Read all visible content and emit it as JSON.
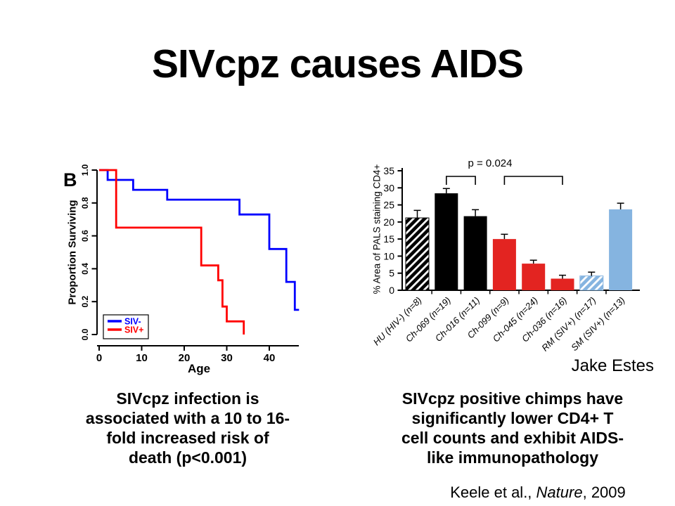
{
  "slide": {
    "title": "SIVcpz causes AIDS",
    "left_caption": "SIVcpz infection is\nassociated with a 10 to 16-\nfold increased risk of\ndeath (p<0.001)",
    "right_caption": "SIVcpz positive chimps have\nsignificantly lower CD4+ T\ncell counts and exhibit AIDS-\nlike immunopathology",
    "credit": "Jake Estes",
    "citation": {
      "prefix": "Keele et al., ",
      "journal": "Nature",
      "suffix": ", 2009"
    }
  },
  "colors": {
    "background": "#ffffff",
    "text": "#000000",
    "siv_negative_line": "#0000ff",
    "siv_positive_line": "#ff0000",
    "bar_black": "#000000",
    "bar_red": "#e32421",
    "bar_light_blue": "#85b4e0"
  },
  "chart_data": [
    {
      "type": "line",
      "subtype": "kaplan-meier-step",
      "panel_label": "B",
      "xlabel": "Age",
      "ylabel": "Proportion Surviving",
      "xlim": [
        0,
        47
      ],
      "ylim": [
        0.0,
        1.0
      ],
      "xticks": [
        0,
        10,
        20,
        30,
        40
      ],
      "yticks": [
        "0.0",
        "0.2",
        "0.4",
        "0.6",
        "0.8",
        "1.0"
      ],
      "grid": false,
      "legend_position": "lower-left",
      "series": [
        {
          "name": "SIV-",
          "color": "#0000ff",
          "step_points": [
            [
              0,
              1.0
            ],
            [
              2,
              1.0
            ],
            [
              2,
              0.94
            ],
            [
              8,
              0.94
            ],
            [
              8,
              0.88
            ],
            [
              16,
              0.88
            ],
            [
              16,
              0.82
            ],
            [
              33,
              0.82
            ],
            [
              33,
              0.73
            ],
            [
              40,
              0.73
            ],
            [
              40,
              0.52
            ],
            [
              44,
              0.52
            ],
            [
              44,
              0.32
            ],
            [
              46,
              0.32
            ],
            [
              46,
              0.15
            ],
            [
              47,
              0.15
            ]
          ]
        },
        {
          "name": "SIV+",
          "color": "#ff0000",
          "step_points": [
            [
              0,
              1.0
            ],
            [
              4,
              1.0
            ],
            [
              4,
              0.65
            ],
            [
              24,
              0.65
            ],
            [
              24,
              0.42
            ],
            [
              28,
              0.42
            ],
            [
              28,
              0.33
            ],
            [
              29,
              0.33
            ],
            [
              29,
              0.17
            ],
            [
              30,
              0.17
            ],
            [
              30,
              0.08
            ],
            [
              34,
              0.08
            ],
            [
              34,
              0.0
            ]
          ]
        }
      ]
    },
    {
      "type": "bar",
      "ylabel": "% Area of PALS staining CD4+",
      "ylim": [
        0,
        35
      ],
      "yticks": [
        0,
        5,
        10,
        15,
        20,
        25,
        30,
        35
      ],
      "grid": false,
      "categories": [
        "HU (HIV-) (n=8)",
        "Ch-069 (n=19)",
        "Ch-016 (n=11)",
        "Ch-099 (n=9)",
        "Ch-045 (n=24)",
        "Ch-036 (n=16)",
        "RM (SIV+) (n=17)",
        "SM (SIV+) (n=13)"
      ],
      "values": [
        21.2,
        28.4,
        21.7,
        15.0,
        7.8,
        3.4,
        4.2,
        23.7
      ],
      "errors": [
        2.2,
        1.4,
        1.9,
        1.4,
        1.0,
        1.0,
        1.1,
        1.8
      ],
      "bar_styles": [
        "black-hatch",
        "black",
        "black",
        "red",
        "red",
        "red",
        "blue-hatch",
        "blue"
      ],
      "annotation": {
        "text": "p = 0.024",
        "brackets": [
          [
            1,
            2
          ],
          [
            3,
            5
          ]
        ]
      }
    }
  ]
}
